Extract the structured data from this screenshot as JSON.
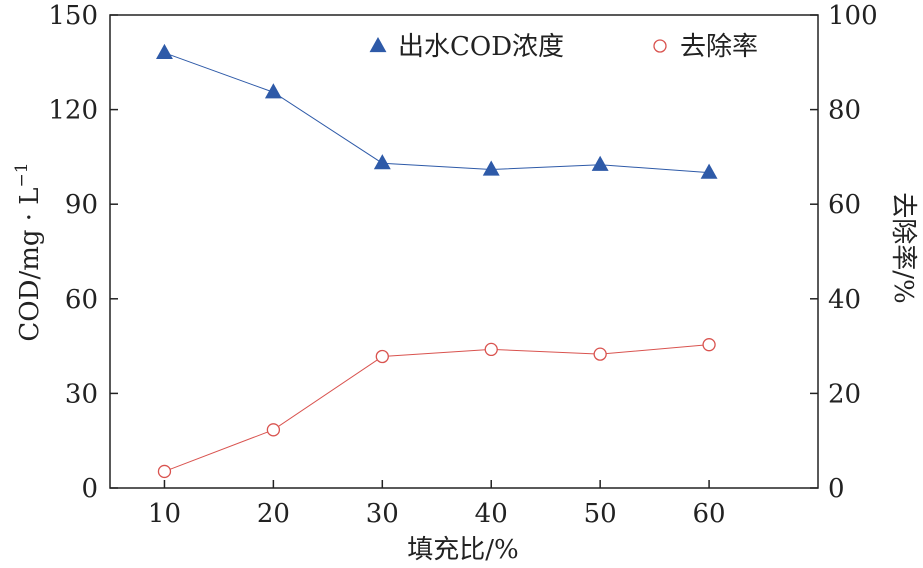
{
  "chart_data": {
    "type": "line",
    "title": "",
    "xlabel": "填充比/%",
    "ylabel_left_parts": [
      "COD/mg · L",
      "−1"
    ],
    "ylabel_right": "去除率/%",
    "x": [
      10,
      20,
      30,
      40,
      50,
      60
    ],
    "xlim": [
      5,
      70
    ],
    "ylim_left": [
      0,
      150
    ],
    "ylim_right": [
      0,
      100
    ],
    "xticks": [
      10,
      20,
      30,
      40,
      50,
      60
    ],
    "yticks_left": [
      0,
      30,
      60,
      90,
      120,
      150
    ],
    "yticks_right": [
      0,
      20,
      40,
      60,
      80,
      100
    ],
    "legend_position": "top-right",
    "grid": false,
    "series": [
      {
        "name": "出水COD浓度",
        "axis": "left",
        "marker": "triangle-filled",
        "color": "#2e5aa8",
        "values": [
          138,
          125.5,
          103,
          101,
          102.5,
          100
        ]
      },
      {
        "name": "去除率",
        "axis": "right",
        "marker": "circle-open",
        "color": "#d9534f",
        "values": [
          3.5,
          12.3,
          27.8,
          29.3,
          28.3,
          30.3
        ]
      }
    ]
  }
}
